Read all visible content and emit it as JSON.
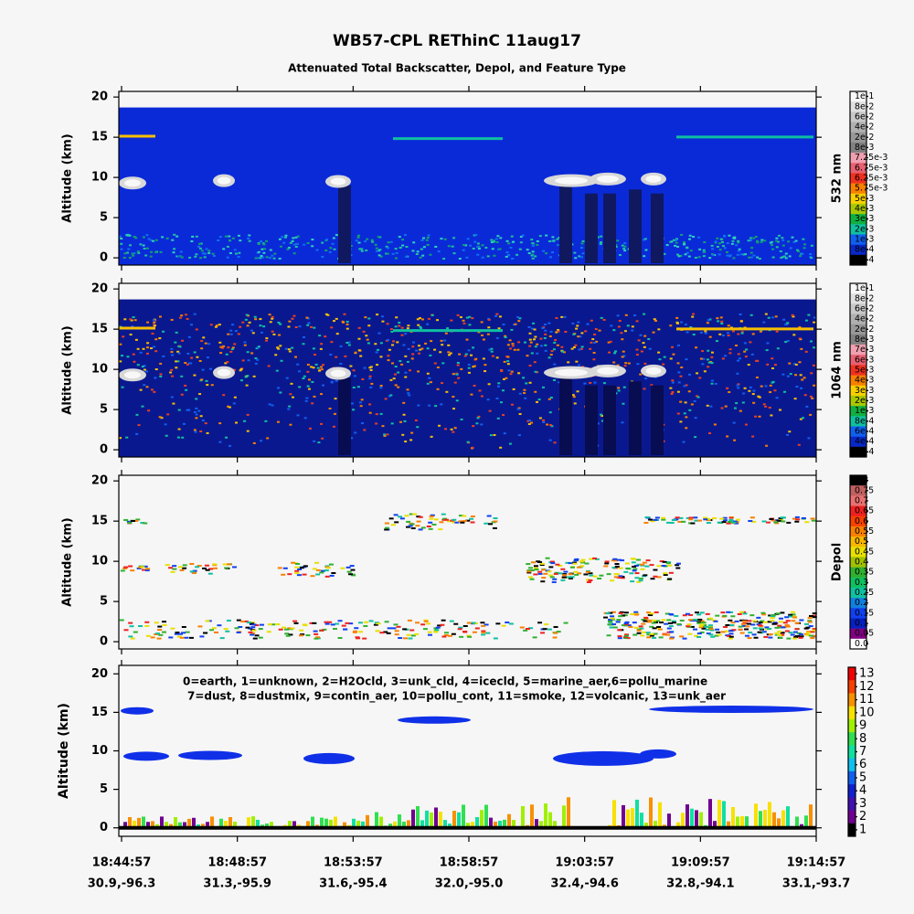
{
  "chart_data": [
    {
      "type": "heatmap",
      "title": "WB57-CPL REThinC 11aug17",
      "subtitle": "Attenuated Total Backscatter, Depol, and Feature Type",
      "ylabel": "Altitude (km)",
      "ylim": [
        -0.9,
        20.7
      ],
      "yticks": [
        0,
        5,
        10,
        15,
        20
      ],
      "colorbar": {
        "label": "532 nm",
        "levels": [
          {
            "value": 0.1,
            "label": "1e-1"
          },
          {
            "value": 0.08,
            "label": "8e-2"
          },
          {
            "value": 0.06,
            "label": "6e-2"
          },
          {
            "value": 0.04,
            "label": "4e-2"
          },
          {
            "value": 0.02,
            "label": "2e-2"
          },
          {
            "value": 0.008,
            "label": "8e-3"
          },
          {
            "value": 0.00725,
            "label": "7.25e-3"
          },
          {
            "value": 0.00675,
            "label": "6.75e-3"
          },
          {
            "value": 0.00625,
            "label": "6.25e-3"
          },
          {
            "value": 0.00575,
            "label": "5.75e-3"
          },
          {
            "value": 0.005,
            "label": "5e-3"
          },
          {
            "value": 0.004,
            "label": "4e-3"
          },
          {
            "value": 0.003,
            "label": "3e-3"
          },
          {
            "value": 0.002,
            "label": "2e-3"
          },
          {
            "value": 0.001,
            "label": "1e-3"
          },
          {
            "value": 0.0008,
            "label": "8e-4"
          },
          {
            "value": 0.0006,
            "label": "6e-4"
          }
        ],
        "colors": [
          "#f8f8f8",
          "#e0e0e0",
          "#c8c8c8",
          "#b0b0b0",
          "#989898",
          "#808080",
          "#f0a0b0",
          "#e86070",
          "#f03020",
          "#f88000",
          "#f8d000",
          "#a8c800",
          "#10b040",
          "#10c0a0",
          "#1060f0",
          "#0828c8",
          "#000000"
        ]
      }
    },
    {
      "type": "heatmap",
      "ylabel": "Altitude (km)",
      "ylim": [
        -0.9,
        20.7
      ],
      "yticks": [
        0,
        5,
        10,
        15,
        20
      ],
      "colorbar": {
        "label": "1064 nm",
        "levels": [
          {
            "value": 0.1,
            "label": "1e-1"
          },
          {
            "value": 0.08,
            "label": "8e-2"
          },
          {
            "value": 0.06,
            "label": "6e-2"
          },
          {
            "value": 0.04,
            "label": "4e-2"
          },
          {
            "value": 0.02,
            "label": "2e-2"
          },
          {
            "value": 0.008,
            "label": "8e-3"
          },
          {
            "value": 0.007,
            "label": "7e-3"
          },
          {
            "value": 0.006,
            "label": "6e-3"
          },
          {
            "value": 0.005,
            "label": "5e-3"
          },
          {
            "value": 0.004,
            "label": "4e-3"
          },
          {
            "value": 0.003,
            "label": "3e-3"
          },
          {
            "value": 0.002,
            "label": "2e-3"
          },
          {
            "value": 0.001,
            "label": "1e-3"
          },
          {
            "value": 0.0008,
            "label": "8e-4"
          },
          {
            "value": 0.0006,
            "label": "6e-4"
          },
          {
            "value": 0.0004,
            "label": "4e-4"
          },
          {
            "value": 0.0002,
            "label": "2e-4"
          }
        ],
        "colors": [
          "#f8f8f8",
          "#e0e0e0",
          "#c8c8c8",
          "#b0b0b0",
          "#989898",
          "#808080",
          "#f0a0b0",
          "#e86070",
          "#f03020",
          "#f88000",
          "#f8d000",
          "#a8c800",
          "#10b040",
          "#10c0a0",
          "#1060f0",
          "#0828c8",
          "#000000"
        ]
      }
    },
    {
      "type": "heatmap",
      "ylabel": "Altitude (km)",
      "ylim": [
        -0.9,
        20.7
      ],
      "yticks": [
        0,
        5,
        10,
        15,
        20
      ],
      "colorbar": {
        "label": "Depol",
        "levels": [
          0.8,
          0.75,
          0.7,
          0.65,
          0.6,
          0.55,
          0.5,
          0.45,
          0.4,
          0.35,
          0.3,
          0.25,
          0.2,
          0.15,
          0.1,
          0.05,
          {
            "value": 0,
            "label": "0.0"
          }
        ],
        "colors": [
          "#000000",
          "#c06060",
          "#e87070",
          "#f02020",
          "#f84000",
          "#f88000",
          "#f8b800",
          "#e8e000",
          "#a0c000",
          "#30b030",
          "#10c060",
          "#10c0a0",
          "#1080e0",
          "#1040f0",
          "#0820c0",
          "#800080",
          "#ffffff"
        ]
      }
    },
    {
      "type": "heatmap",
      "ylabel": "Altitude (km)",
      "ylim": [
        -1.1,
        21.1
      ],
      "yticks": [
        0,
        5,
        10,
        15,
        20
      ],
      "annotations": [
        "0=earth, 1=unknown, 2=H2Ocld, 3=unk_cld, 4=icecld, 5=marine_aer,6=pollu_marine",
        "7=dust, 8=dustmix, 9=contin_aer, 10=pollu_cont, 11=smoke, 12=volcanic, 13=unk_aer"
      ],
      "colorbar": {
        "levels": [
          13,
          12,
          11,
          10,
          9,
          8,
          7,
          6,
          5,
          4,
          3,
          2,
          1
        ],
        "colors": [
          "#f00000",
          "#f84000",
          "#f89000",
          "#f8e000",
          "#a0f000",
          "#30e050",
          "#10e0a0",
          "#10c0f0",
          "#1060f0",
          "#1020d0",
          "#4010b0",
          "#700090",
          "#000000"
        ]
      },
      "xticks": [
        "18:44:57",
        "18:48:57",
        "18:53:57",
        "18:58:57",
        "19:03:57",
        "19:09:57",
        "19:14:57"
      ],
      "xtick_sublabels": [
        "30.9,-96.3",
        "31.3,-95.9",
        "31.6,-95.4",
        "32.0,-95.0",
        "32.4,-94.6",
        "32.8,-94.1",
        "33.1,-93.7"
      ]
    }
  ]
}
